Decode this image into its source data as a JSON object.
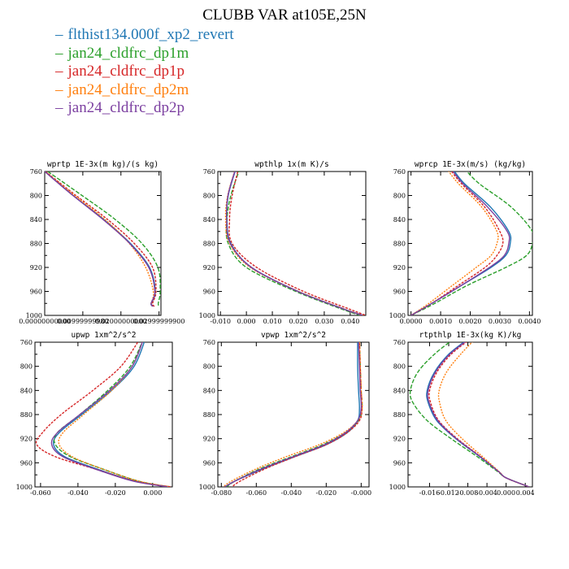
{
  "title": "CLUBB VAR at105E,25N",
  "legend": [
    {
      "label": "flthist134.000f_xp2_revert",
      "color": "#1f77b4"
    },
    {
      "label": "jan24_cldfrc_dp1m",
      "color": "#2ca02c"
    },
    {
      "label": "jan24_cldfrc_dp1p",
      "color": "#d62728"
    },
    {
      "label": "jan24_cldfrc_dp2m",
      "color": "#ff7f0e"
    },
    {
      "label": "jan24_cldfrc_dp2p",
      "color": "#7b3fa0"
    }
  ],
  "chart_data": [
    {
      "type": "line",
      "title": "wprtp  1E-3x(m kg)/(s kg)",
      "xlim": [
        0.0,
        0.0305
      ],
      "ylim": [
        760,
        1000
      ],
      "y_reversed": true,
      "xticks": [
        {
          "v": 0.0,
          "label": "0.00000000000"
        },
        {
          "v": 0.01,
          "label": "0.00999999980"
        },
        {
          "v": 0.02,
          "label": "0.02000000000"
        },
        {
          "v": 0.03,
          "label": "0.02999999900"
        }
      ],
      "yticks": [
        760,
        800,
        840,
        880,
        920,
        960,
        1000
      ],
      "series": [
        {
          "y": [
            760,
            800,
            840,
            880,
            920,
            960,
            980,
            985
          ],
          "x": [
            0.0,
            0.0075,
            0.0155,
            0.0225,
            0.0275,
            0.029,
            0.028,
            0.0285
          ]
        },
        {
          "y": [
            760,
            800,
            840,
            880,
            920,
            960,
            980,
            985
          ],
          "x": [
            0.0008,
            0.0098,
            0.0185,
            0.0255,
            0.0297,
            0.0303,
            0.0298,
            0.03
          ]
        },
        {
          "y": [
            760,
            800,
            840,
            880,
            920,
            960,
            980,
            985
          ],
          "x": [
            0.0002,
            0.0082,
            0.0165,
            0.0235,
            0.0283,
            0.0292,
            0.0283,
            0.0288
          ]
        },
        {
          "y": [
            760,
            800,
            840,
            880,
            920,
            960,
            980,
            985
          ],
          "x": [
            0.0001,
            0.0078,
            0.0158,
            0.0222,
            0.0265,
            0.0285,
            0.028,
            0.0283
          ]
        },
        {
          "y": [
            760,
            800,
            840,
            880,
            920,
            960,
            980,
            985
          ],
          "x": [
            0.0,
            0.0074,
            0.0153,
            0.0223,
            0.0273,
            0.0289,
            0.0279,
            0.0284
          ]
        }
      ]
    },
    {
      "type": "line",
      "title": "wpthlp  1x(m K)/s",
      "xlim": [
        -0.011,
        0.046
      ],
      "ylim": [
        760,
        1000
      ],
      "y_reversed": true,
      "xticks": [
        {
          "v": -0.01,
          "label": "-0.010"
        },
        {
          "v": 0.0,
          "label": "0.000"
        },
        {
          "v": 0.01,
          "label": "0.010"
        },
        {
          "v": 0.02,
          "label": "0.020"
        },
        {
          "v": 0.03,
          "label": "0.030"
        },
        {
          "v": 0.04,
          "label": "0.040"
        }
      ],
      "yticks": [
        760,
        800,
        840,
        880,
        920,
        960,
        1000
      ],
      "series": [
        {
          "y": [
            755,
            800,
            840,
            880,
            920,
            960,
            990,
            1000
          ],
          "x": [
            -0.004,
            -0.007,
            -0.0075,
            -0.006,
            0.002,
            0.02,
            0.038,
            0.045
          ]
        },
        {
          "y": [
            755,
            800,
            840,
            880,
            920,
            960,
            990,
            1000
          ],
          "x": [
            -0.0025,
            -0.006,
            -0.0075,
            -0.007,
            0.0,
            0.019,
            0.037,
            0.044
          ]
        },
        {
          "y": [
            755,
            800,
            840,
            880,
            920,
            960,
            990,
            1000
          ],
          "x": [
            -0.003,
            -0.0055,
            -0.0065,
            -0.0055,
            0.004,
            0.022,
            0.04,
            0.046
          ]
        },
        {
          "y": [
            755,
            800,
            840,
            880,
            920,
            960,
            990,
            1000
          ],
          "x": [
            -0.0042,
            -0.0072,
            -0.008,
            -0.0065,
            0.0015,
            0.02,
            0.038,
            0.045
          ]
        },
        {
          "y": [
            755,
            800,
            840,
            880,
            920,
            960,
            990,
            1000
          ],
          "x": [
            -0.0041,
            -0.0071,
            -0.0076,
            -0.0062,
            0.0019,
            0.0198,
            0.0378,
            0.0448
          ]
        }
      ]
    },
    {
      "type": "line",
      "title": "wprcp  1E-3x(m/s) (kg/kg)",
      "xlim": [
        -0.0001,
        0.0041
      ],
      "ylim": [
        760,
        1000
      ],
      "y_reversed": true,
      "xticks": [
        {
          "v": 0.0,
          "label": "0.0000"
        },
        {
          "v": 0.001,
          "label": "0.0010"
        },
        {
          "v": 0.002,
          "label": "0.0020"
        },
        {
          "v": 0.003,
          "label": "0.0030"
        },
        {
          "v": 0.004,
          "label": "0.0040"
        }
      ],
      "yticks": [
        760,
        800,
        840,
        880,
        920,
        960,
        1000
      ],
      "series": [
        {
          "y": [
            755,
            780,
            820,
            860,
            880,
            900,
            920,
            950,
            980,
            1000
          ],
          "x": [
            0.0014,
            0.0018,
            0.0027,
            0.0033,
            0.00335,
            0.0032,
            0.0027,
            0.0017,
            0.0007,
            0.0
          ]
        },
        {
          "y": [
            755,
            780,
            820,
            860,
            880,
            900,
            920,
            950,
            980,
            1000
          ],
          "x": [
            0.0018,
            0.0023,
            0.0034,
            0.0041,
            0.0041,
            0.0039,
            0.0032,
            0.0019,
            0.0008,
            0.0
          ]
        },
        {
          "y": [
            755,
            780,
            820,
            860,
            880,
            900,
            920,
            950,
            980,
            1000
          ],
          "x": [
            0.0013,
            0.0017,
            0.0025,
            0.003,
            0.0031,
            0.0029,
            0.0025,
            0.0016,
            0.0007,
            0.0
          ]
        },
        {
          "y": [
            755,
            780,
            820,
            860,
            880,
            900,
            920,
            950,
            980,
            1000
          ],
          "x": [
            0.0012,
            0.0016,
            0.0024,
            0.0029,
            0.0029,
            0.0027,
            0.0022,
            0.0014,
            0.0006,
            0.0
          ]
        },
        {
          "y": [
            755,
            780,
            820,
            860,
            880,
            900,
            920,
            950,
            980,
            1000
          ],
          "x": [
            0.00135,
            0.00175,
            0.0026,
            0.00325,
            0.0033,
            0.00315,
            0.00265,
            0.0017,
            0.0007,
            0.0
          ]
        }
      ]
    },
    {
      "type": "line",
      "title": "upwp  1xm^2/s^2",
      "xlim": [
        -0.063,
        0.0105
      ],
      "ylim": [
        760,
        1000
      ],
      "y_reversed": true,
      "xticks": [
        {
          "v": -0.06,
          "label": "-0.060"
        },
        {
          "v": -0.04,
          "label": "-0.040"
        },
        {
          "v": -0.02,
          "label": "-0.020"
        },
        {
          "v": 0.0,
          "label": "0.000"
        }
      ],
      "yticks": [
        760,
        800,
        840,
        880,
        920,
        960,
        1000
      ],
      "series": [
        {
          "y": [
            755,
            800,
            840,
            880,
            910,
            930,
            950,
            970,
            990,
            1000
          ],
          "x": [
            -0.004,
            -0.01,
            -0.022,
            -0.038,
            -0.05,
            -0.053,
            -0.047,
            -0.03,
            -0.01,
            0.009
          ]
        },
        {
          "y": [
            755,
            800,
            840,
            880,
            910,
            930,
            950,
            970,
            990,
            1000
          ],
          "x": [
            -0.005,
            -0.012,
            -0.024,
            -0.039,
            -0.051,
            -0.052,
            -0.044,
            -0.027,
            -0.008,
            0.009
          ]
        },
        {
          "y": [
            755,
            800,
            840,
            880,
            910,
            930,
            950,
            970,
            990,
            1000
          ],
          "x": [
            -0.007,
            -0.017,
            -0.032,
            -0.049,
            -0.059,
            -0.062,
            -0.052,
            -0.031,
            -0.01,
            0.01
          ]
        },
        {
          "y": [
            755,
            800,
            840,
            880,
            910,
            930,
            950,
            970,
            990,
            1000
          ],
          "x": [
            -0.005,
            -0.011,
            -0.022,
            -0.037,
            -0.048,
            -0.05,
            -0.043,
            -0.027,
            -0.008,
            0.009
          ]
        },
        {
          "y": [
            755,
            800,
            840,
            880,
            910,
            930,
            950,
            970,
            990,
            1000
          ],
          "x": [
            -0.005,
            -0.011,
            -0.023,
            -0.039,
            -0.051,
            -0.054,
            -0.048,
            -0.031,
            -0.011,
            0.008
          ]
        }
      ]
    },
    {
      "type": "line",
      "title": "vpwp  1xm^2/s^2",
      "xlim": [
        -0.082,
        0.0045
      ],
      "ylim": [
        760,
        1000
      ],
      "y_reversed": true,
      "xticks": [
        {
          "v": -0.08,
          "label": "-0.080"
        },
        {
          "v": -0.06,
          "label": "-0.060"
        },
        {
          "v": -0.04,
          "label": "-0.040"
        },
        {
          "v": -0.02,
          "label": "-0.020"
        },
        {
          "v": 0.0,
          "label": "-0.000"
        }
      ],
      "yticks": [
        760,
        800,
        840,
        880,
        920,
        960,
        1000
      ],
      "series": [
        {
          "y": [
            755,
            800,
            840,
            870,
            890,
            910,
            930,
            950,
            970,
            990,
            1000
          ],
          "x": [
            -0.002,
            -0.002,
            -0.0015,
            -0.001,
            -0.002,
            -0.008,
            -0.02,
            -0.038,
            -0.056,
            -0.072,
            -0.078
          ]
        },
        {
          "y": [
            755,
            800,
            840,
            870,
            890,
            910,
            930,
            950,
            970,
            990,
            1000
          ],
          "x": [
            -0.001,
            -0.0005,
            0.0,
            0.0005,
            -0.0015,
            -0.009,
            -0.022,
            -0.04,
            -0.058,
            -0.072,
            -0.077
          ]
        },
        {
          "y": [
            755,
            800,
            840,
            870,
            890,
            910,
            930,
            950,
            970,
            990,
            1000
          ],
          "x": [
            -0.001,
            -0.0005,
            0.0,
            0.0005,
            -0.001,
            -0.008,
            -0.02,
            -0.038,
            -0.055,
            -0.069,
            -0.074
          ]
        },
        {
          "y": [
            755,
            800,
            840,
            870,
            890,
            910,
            930,
            950,
            970,
            990,
            1000
          ],
          "x": [
            -0.001,
            -0.0005,
            0.0,
            0.0005,
            -0.002,
            -0.01,
            -0.024,
            -0.043,
            -0.06,
            -0.074,
            -0.079
          ]
        },
        {
          "y": [
            755,
            800,
            840,
            870,
            890,
            910,
            930,
            950,
            970,
            990,
            1000
          ],
          "x": [
            -0.0015,
            -0.001,
            -0.0005,
            0.0,
            -0.002,
            -0.009,
            -0.021,
            -0.039,
            -0.057,
            -0.072,
            -0.078
          ]
        }
      ]
    },
    {
      "type": "line",
      "title": "rtpthlp  1E-3x(kg K)/kg",
      "xlim": [
        -0.0205,
        0.0055
      ],
      "ylim": [
        760,
        1000
      ],
      "y_reversed": true,
      "xticks": [
        {
          "v": -0.016,
          "label": "-0.016"
        },
        {
          "v": -0.012,
          "label": "-0.012"
        },
        {
          "v": -0.008,
          "label": "-0.008"
        },
        {
          "v": -0.004,
          "label": "-0.004"
        },
        {
          "v": 0.0,
          "label": "0.000"
        },
        {
          "v": 0.004,
          "label": "0.004"
        }
      ],
      "yticks": [
        760,
        800,
        840,
        880,
        920,
        960,
        1000
      ],
      "series": [
        {
          "y": [
            755,
            780,
            810,
            840,
            860,
            890,
            920,
            950,
            975,
            985,
            1000
          ],
          "x": [
            -0.008,
            -0.012,
            -0.015,
            -0.0165,
            -0.0163,
            -0.0145,
            -0.0105,
            -0.0055,
            -0.0015,
            0.0,
            0.0048
          ]
        },
        {
          "y": [
            755,
            780,
            810,
            840,
            860,
            890,
            920,
            950,
            975,
            985,
            1000
          ],
          "x": [
            -0.011,
            -0.015,
            -0.0185,
            -0.02,
            -0.0195,
            -0.0165,
            -0.0115,
            -0.006,
            -0.0017,
            0.0,
            0.0048
          ]
        },
        {
          "y": [
            755,
            780,
            810,
            840,
            860,
            890,
            920,
            950,
            975,
            985,
            1000
          ],
          "x": [
            -0.0075,
            -0.0115,
            -0.0145,
            -0.016,
            -0.0158,
            -0.0141,
            -0.0102,
            -0.0053,
            -0.0015,
            0.0,
            0.0048
          ]
        },
        {
          "y": [
            755,
            780,
            810,
            840,
            860,
            890,
            920,
            950,
            975,
            985,
            1000
          ],
          "x": [
            -0.0065,
            -0.0095,
            -0.0125,
            -0.014,
            -0.0139,
            -0.0126,
            -0.0092,
            -0.0049,
            -0.0014,
            0.0,
            0.0048
          ]
        },
        {
          "y": [
            755,
            780,
            810,
            840,
            860,
            890,
            920,
            950,
            975,
            985,
            1000
          ],
          "x": [
            -0.0078,
            -0.0118,
            -0.0148,
            -0.0163,
            -0.0161,
            -0.0143,
            -0.0104,
            -0.0054,
            -0.0015,
            0.0,
            0.0048
          ]
        }
      ]
    }
  ]
}
